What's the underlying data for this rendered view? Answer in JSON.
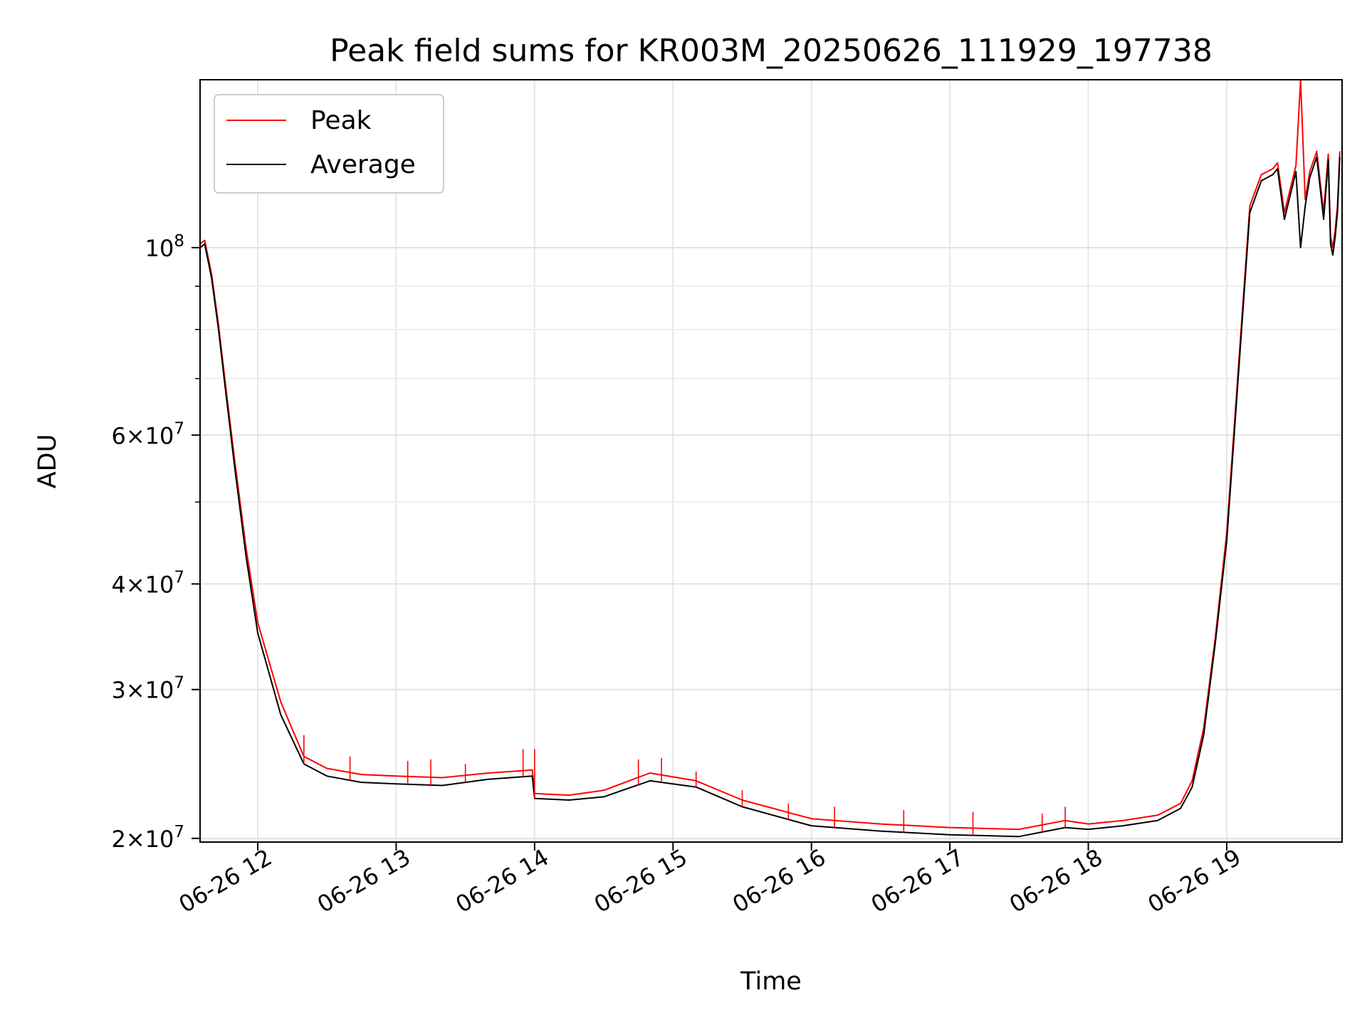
{
  "chart_data": {
    "type": "line",
    "title": "Peak field sums for KR003M_20250626_111929_197738",
    "xlabel": "Time",
    "ylabel": "ADU",
    "yscale": "log",
    "grid": true,
    "legend": "top-left",
    "xlim": [
      "2025-06-26 11:35",
      "2025-06-26 19:50"
    ],
    "ylim": [
      19800000,
      158000000
    ],
    "x_ticks": [
      {
        "value": "2025-06-26 12:00",
        "label": "06-26 12"
      },
      {
        "value": "2025-06-26 13:00",
        "label": "06-26 13"
      },
      {
        "value": "2025-06-26 14:00",
        "label": "06-26 14"
      },
      {
        "value": "2025-06-26 15:00",
        "label": "06-26 15"
      },
      {
        "value": "2025-06-26 16:00",
        "label": "06-26 16"
      },
      {
        "value": "2025-06-26 17:00",
        "label": "06-26 17"
      },
      {
        "value": "2025-06-26 18:00",
        "label": "06-26 18"
      },
      {
        "value": "2025-06-26 19:00",
        "label": "06-26 19"
      }
    ],
    "y_major_ticks": [
      {
        "value": 20000000,
        "mantissa": "2",
        "exponent": "7"
      },
      {
        "value": 30000000,
        "mantissa": "3",
        "exponent": "7"
      },
      {
        "value": 40000000,
        "mantissa": "4",
        "exponent": "7"
      },
      {
        "value": 60000000,
        "mantissa": "6",
        "exponent": "7"
      },
      {
        "value": 100000000,
        "mantissa": "",
        "exponent": "8"
      }
    ],
    "y_minor_gridlines": [
      50000000,
      70000000,
      80000000,
      90000000
    ],
    "legend_entries": [
      {
        "label": "Peak",
        "color": "#ff0000"
      },
      {
        "label": "Average",
        "color": "#000000"
      }
    ],
    "series": [
      {
        "name": "Average",
        "color": "#000000",
        "x": [
          "2025-06-26 11:35",
          "2025-06-26 11:37",
          "2025-06-26 11:40",
          "2025-06-26 11:43",
          "2025-06-26 11:46",
          "2025-06-26 11:50",
          "2025-06-26 11:55",
          "2025-06-26 12:00",
          "2025-06-26 12:10",
          "2025-06-26 12:20",
          "2025-06-26 12:30",
          "2025-06-26 12:45",
          "2025-06-26 13:00",
          "2025-06-26 13:20",
          "2025-06-26 13:40",
          "2025-06-26 13:59",
          "2025-06-26 14:00",
          "2025-06-26 14:15",
          "2025-06-26 14:30",
          "2025-06-26 14:50",
          "2025-06-26 15:10",
          "2025-06-26 15:30",
          "2025-06-26 16:00",
          "2025-06-26 16:30",
          "2025-06-26 17:00",
          "2025-06-26 17:30",
          "2025-06-26 17:50",
          "2025-06-26 18:00",
          "2025-06-26 18:15",
          "2025-06-26 18:30",
          "2025-06-26 18:40",
          "2025-06-26 18:45",
          "2025-06-26 18:50",
          "2025-06-26 18:55",
          "2025-06-26 19:00",
          "2025-06-26 19:10",
          "2025-06-26 19:15",
          "2025-06-26 19:20",
          "2025-06-26 19:22",
          "2025-06-26 19:25",
          "2025-06-26 19:30",
          "2025-06-26 19:32",
          "2025-06-26 19:34",
          "2025-06-26 19:36",
          "2025-06-26 19:39",
          "2025-06-26 19:42",
          "2025-06-26 19:44",
          "2025-06-26 19:45",
          "2025-06-26 19:46",
          "2025-06-26 19:47",
          "2025-06-26 19:48",
          "2025-06-26 19:49"
        ],
        "y": [
          100000000,
          101000000,
          92000000,
          80000000,
          68000000,
          55000000,
          43000000,
          35000000,
          28000000,
          24500000,
          23700000,
          23300000,
          23200000,
          23100000,
          23500000,
          23700000,
          22300000,
          22200000,
          22400000,
          23400000,
          23000000,
          21800000,
          20700000,
          20400000,
          20200000,
          20100000,
          20600000,
          20500000,
          20700000,
          21000000,
          21700000,
          23000000,
          26500000,
          34000000,
          45000000,
          110000000,
          120000000,
          122000000,
          124000000,
          108000000,
          123000000,
          100000000,
          112000000,
          121000000,
          128000000,
          108000000,
          127000000,
          101000000,
          98000000,
          103000000,
          110000000,
          128000000
        ]
      },
      {
        "name": "Peak",
        "color": "#ff0000",
        "x": [
          "2025-06-26 11:35",
          "2025-06-26 11:37",
          "2025-06-26 11:40",
          "2025-06-26 11:43",
          "2025-06-26 11:46",
          "2025-06-26 11:50",
          "2025-06-26 11:55",
          "2025-06-26 12:00",
          "2025-06-26 12:10",
          "2025-06-26 12:20",
          "2025-06-26 12:30",
          "2025-06-26 12:45",
          "2025-06-26 13:00",
          "2025-06-26 13:20",
          "2025-06-26 13:40",
          "2025-06-26 13:59",
          "2025-06-26 14:00",
          "2025-06-26 14:15",
          "2025-06-26 14:30",
          "2025-06-26 14:50",
          "2025-06-26 15:10",
          "2025-06-26 15:30",
          "2025-06-26 16:00",
          "2025-06-26 16:30",
          "2025-06-26 17:00",
          "2025-06-26 17:30",
          "2025-06-26 17:50",
          "2025-06-26 18:00",
          "2025-06-26 18:15",
          "2025-06-26 18:30",
          "2025-06-26 18:40",
          "2025-06-26 18:45",
          "2025-06-26 18:50",
          "2025-06-26 18:55",
          "2025-06-26 19:00",
          "2025-06-26 19:10",
          "2025-06-26 19:15",
          "2025-06-26 19:20",
          "2025-06-26 19:22",
          "2025-06-26 19:25",
          "2025-06-26 19:30",
          "2025-06-26 19:32",
          "2025-06-26 19:34",
          "2025-06-26 19:36",
          "2025-06-26 19:39",
          "2025-06-26 19:42",
          "2025-06-26 19:44",
          "2025-06-26 19:45",
          "2025-06-26 19:46",
          "2025-06-26 19:47",
          "2025-06-26 19:48",
          "2025-06-26 19:49"
        ],
        "y": [
          101000000,
          102000000,
          93000000,
          81000000,
          69000000,
          56000000,
          44000000,
          36000000,
          29000000,
          25000000,
          24200000,
          23800000,
          23700000,
          23600000,
          23900000,
          24100000,
          22600000,
          22500000,
          22800000,
          23900000,
          23400000,
          22200000,
          21100000,
          20800000,
          20600000,
          20500000,
          21000000,
          20800000,
          21000000,
          21300000,
          22000000,
          23400000,
          27000000,
          34500000,
          46000000,
          112000000,
          122000000,
          124000000,
          126000000,
          110000000,
          125000000,
          158000000,
          114000000,
          123000000,
          130000000,
          110000000,
          129000000,
          103000000,
          100000000,
          105000000,
          112000000,
          130000000
        ]
      }
    ],
    "peak_spikes": [
      {
        "x": "2025-06-26 12:20",
        "y": 26500000
      },
      {
        "x": "2025-06-26 12:40",
        "y": 25000000
      },
      {
        "x": "2025-06-26 13:05",
        "y": 24700000
      },
      {
        "x": "2025-06-26 13:15",
        "y": 24800000
      },
      {
        "x": "2025-06-26 13:30",
        "y": 24500000
      },
      {
        "x": "2025-06-26 13:55",
        "y": 25500000
      },
      {
        "x": "2025-06-26 14:00",
        "y": 25500000
      },
      {
        "x": "2025-06-26 14:45",
        "y": 24800000
      },
      {
        "x": "2025-06-26 14:55",
        "y": 24900000
      },
      {
        "x": "2025-06-26 15:10",
        "y": 24000000
      },
      {
        "x": "2025-06-26 15:30",
        "y": 22800000
      },
      {
        "x": "2025-06-26 15:50",
        "y": 22000000
      },
      {
        "x": "2025-06-26 16:10",
        "y": 21800000
      },
      {
        "x": "2025-06-26 16:40",
        "y": 21600000
      },
      {
        "x": "2025-06-26 17:10",
        "y": 21500000
      },
      {
        "x": "2025-06-26 17:40",
        "y": 21400000
      },
      {
        "x": "2025-06-26 17:50",
        "y": 21800000
      }
    ]
  }
}
